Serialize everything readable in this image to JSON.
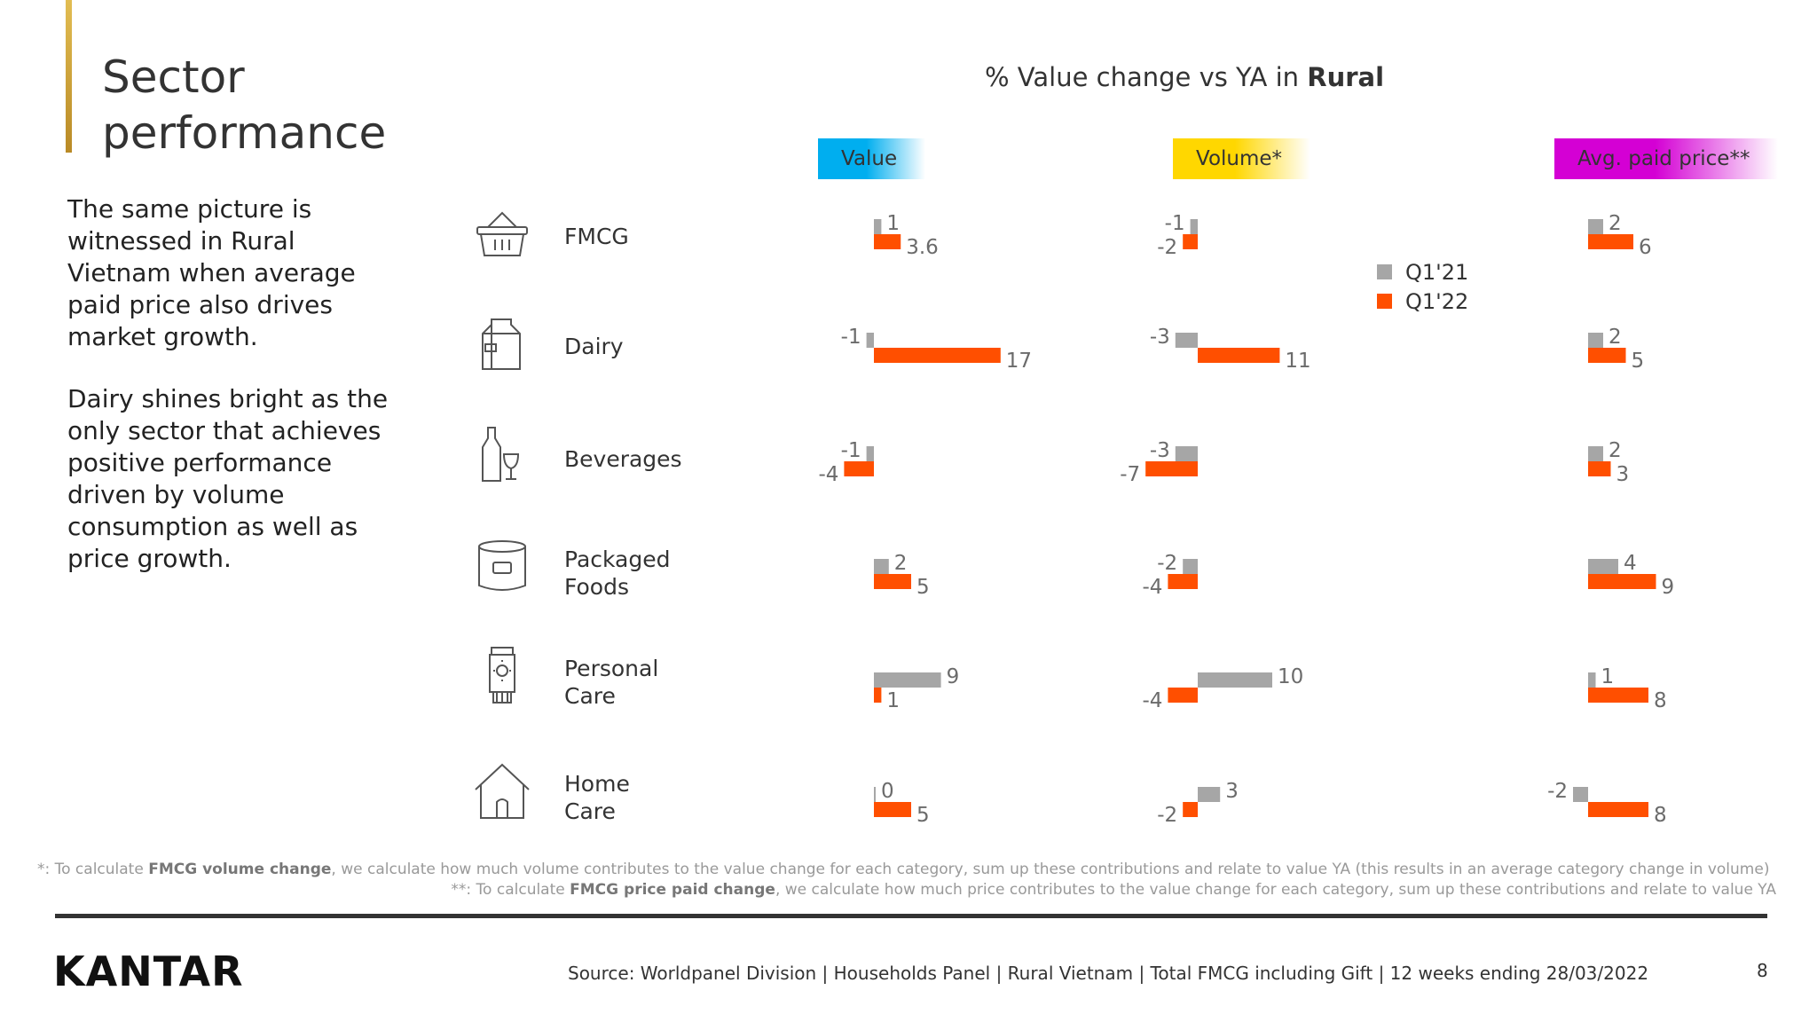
{
  "header": {
    "title_line1": "Sector",
    "title_line2": "performance"
  },
  "intro": {
    "paragraph1": "The same picture is witnessed in Rural Vietnam when average paid price also drives market growth.",
    "paragraph2": "Dairy shines bright as the only sector that achieves positive performance driven by volume consumption as well as price growth."
  },
  "chart_data": {
    "type": "bar",
    "title_prefix": "% Value change vs YA in",
    "title_emphasis": "Rural",
    "categories": [
      {
        "label_line1": "FMCG",
        "label_line2": "",
        "icon": "basket-icon"
      },
      {
        "label_line1": "Dairy",
        "label_line2": "",
        "icon": "milk-carton-icon"
      },
      {
        "label_line1": "Beverages",
        "label_line2": "",
        "icon": "bottle-glass-icon"
      },
      {
        "label_line1": "Packaged",
        "label_line2": "Foods",
        "icon": "food-container-icon"
      },
      {
        "label_line1": "Personal",
        "label_line2": "Care",
        "icon": "lotion-tube-icon"
      },
      {
        "label_line1": "Home",
        "label_line2": "Care",
        "icon": "house-icon"
      }
    ],
    "legend": [
      {
        "name": "Q1'21",
        "color": "#a6a6a6"
      },
      {
        "name": "Q1'22",
        "color": "#ff4f00"
      }
    ],
    "panels": [
      {
        "label": "Value",
        "accent": "#00aeef",
        "series": [
          {
            "name": "Q1'21",
            "values": [
              1,
              -1,
              -1,
              2,
              9,
              0
            ],
            "labels": [
              "1",
              "-1",
              "-1",
              "2",
              "9",
              "0"
            ]
          },
          {
            "name": "Q1'22",
            "values": [
              3.6,
              17,
              -4,
              5,
              1,
              5
            ],
            "labels": [
              "3.6",
              "17",
              "-4",
              "5",
              "1",
              "5"
            ]
          }
        ]
      },
      {
        "label": "Volume*",
        "accent": "#ffd700",
        "series": [
          {
            "name": "Q1'21",
            "values": [
              -1,
              -3,
              -3,
              -2,
              10,
              3
            ],
            "labels": [
              "-1",
              "-3",
              "-3",
              "-2",
              "10",
              "3"
            ]
          },
          {
            "name": "Q1'22",
            "values": [
              -2,
              11,
              -7,
              -4,
              -4,
              -2
            ],
            "labels": [
              "-2",
              "11",
              "-7",
              "-4",
              "-4",
              "-2"
            ]
          }
        ]
      },
      {
        "label": "Avg. paid price**",
        "accent": "#d400d4",
        "series": [
          {
            "name": "Q1'21",
            "values": [
              2,
              2,
              2,
              4,
              1,
              -2
            ],
            "labels": [
              "2",
              "2",
              "2",
              "4",
              "1",
              "-2"
            ]
          },
          {
            "name": "Q1'22",
            "values": [
              6,
              5,
              3,
              9,
              8,
              8
            ],
            "labels": [
              "6",
              "5",
              "3",
              "9",
              "8",
              "8"
            ]
          }
        ]
      }
    ]
  },
  "footnotes": {
    "fn1_prefix": "*: To calculate ",
    "fn1_bold": "FMCG volume change",
    "fn1_rest": ", we calculate how much volume contributes to the value change for each category, sum up these contributions and relate to value YA (this results in an average category change in volume)",
    "fn2_prefix": "**: To calculate ",
    "fn2_bold": "FMCG price paid change",
    "fn2_rest": ", we calculate how much price contributes to the value change for each category, sum up these contributions and relate to value YA"
  },
  "footer": {
    "logo": "KANTAR",
    "source": "Source: Worldpanel Division | Households Panel | Rural Vietnam | Total FMCG including Gift | 12 weeks ending 28/03/2022",
    "page_number": "8"
  }
}
